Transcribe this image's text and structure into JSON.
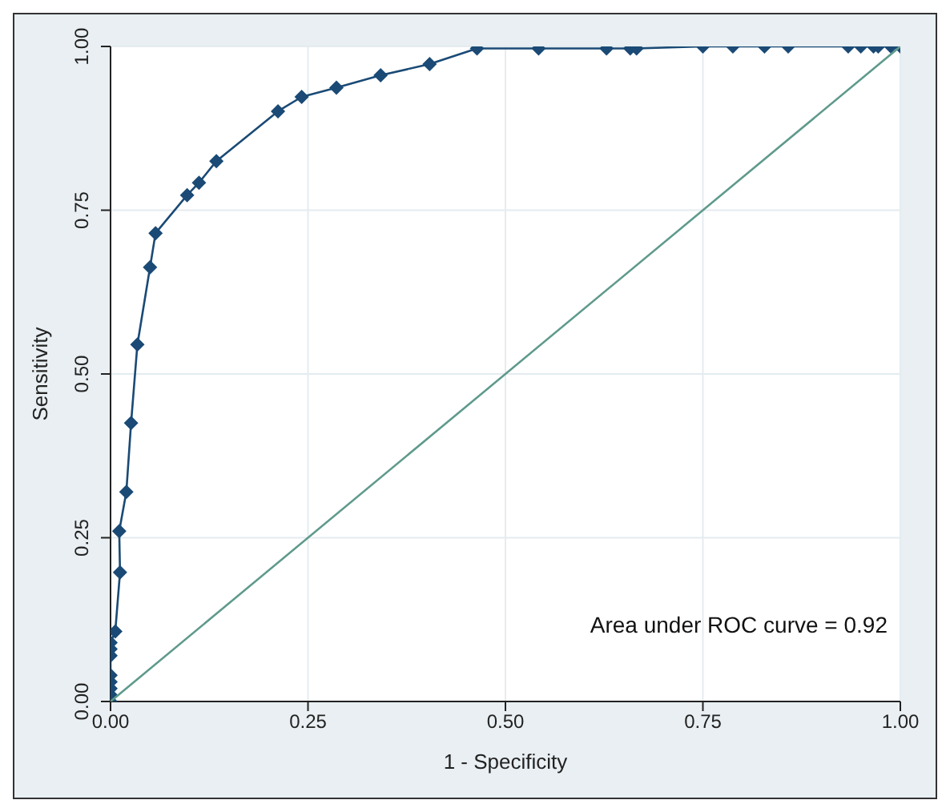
{
  "chart_data": {
    "type": "line",
    "xlabel": "1 - Specificity",
    "ylabel": "Sensitivity",
    "xlim": [
      0,
      1
    ],
    "ylim": [
      0,
      1
    ],
    "xticks": [
      {
        "value": 0,
        "label": "0.00"
      },
      {
        "value": 0.25,
        "label": "0.25"
      },
      {
        "value": 0.5,
        "label": "0.50"
      },
      {
        "value": 0.75,
        "label": "0.75"
      },
      {
        "value": 1,
        "label": "1.00"
      }
    ],
    "yticks": [
      {
        "value": 0,
        "label": "0.00"
      },
      {
        "value": 0.25,
        "label": "0.25"
      },
      {
        "value": 0.5,
        "label": "0.50"
      },
      {
        "value": 0.75,
        "label": "0.75"
      },
      {
        "value": 1,
        "label": "1.00"
      }
    ],
    "grid": true,
    "legend": false,
    "line_style": "solid",
    "annotations": [
      "Area under ROC curve = 0.92"
    ],
    "series": [
      {
        "color": "#1a4a75",
        "marker": "diamond",
        "x": [
          0,
          0,
          0,
          0,
          0,
          0,
          0,
          0,
          0.006,
          0.012,
          0.011,
          0.02,
          0.026,
          0.034,
          0.05,
          0.057,
          0.097,
          0.112,
          0.134,
          0.212,
          0.242,
          0.286,
          0.342,
          0.404,
          0.464,
          0.542,
          0.628,
          0.658,
          0.666,
          0.75,
          0.788,
          0.828,
          0.858,
          0.934,
          0.95,
          0.966,
          0.972,
          0.988,
          1
        ],
        "values": [
          0,
          0.01,
          0.02,
          0.03,
          0.04,
          0.07,
          0.08,
          0.09,
          0.107,
          0.197,
          0.26,
          0.32,
          0.425,
          0.545,
          0.663,
          0.715,
          0.773,
          0.792,
          0.825,
          0.901,
          0.923,
          0.937,
          0.956,
          0.973,
          0.997,
          0.997,
          0.997,
          0.997,
          0.997,
          1,
          1,
          1,
          1,
          1,
          1,
          1,
          1,
          1,
          1
        ]
      },
      {
        "color": "#5f9a8c",
        "marker": "none",
        "x": [
          0,
          1
        ],
        "values": [
          0,
          1
        ]
      }
    ]
  }
}
